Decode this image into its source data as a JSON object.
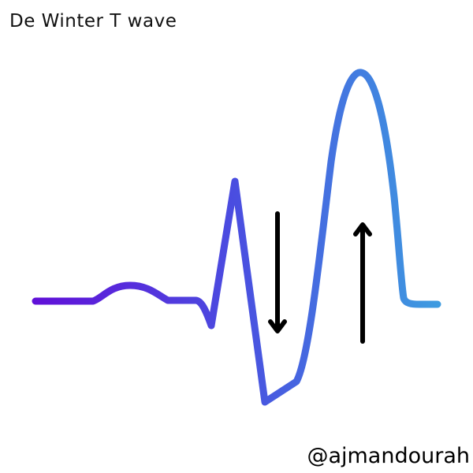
{
  "title": "De Winter T wave",
  "credit": "@ajmandourah",
  "colors": {
    "waveform_start": "#6010d8",
    "waveform_mid": "#4a4ee0",
    "waveform_end": "#3d9be0",
    "arrows": "#000000",
    "background": "#ffffff"
  },
  "icons": {
    "down_arrow": "down-arrow-icon",
    "up_arrow": "up-arrow-icon"
  }
}
